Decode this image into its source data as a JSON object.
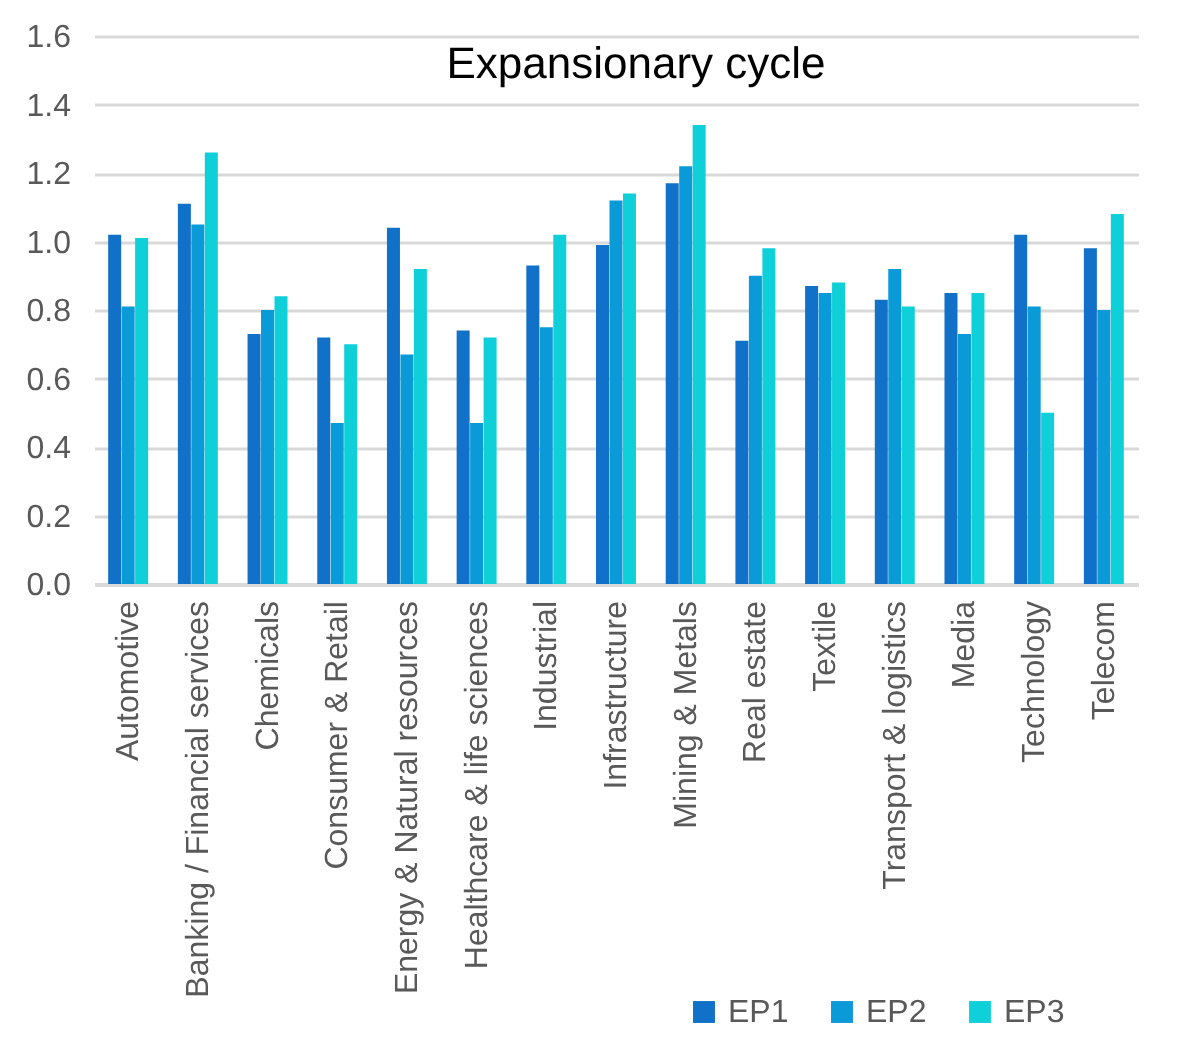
{
  "chart_data": {
    "type": "bar",
    "title": "Expansionary cycle",
    "categories": [
      "Automotive",
      "Banking / Financial services",
      "Chemicals",
      "Consumer & Retail",
      "Energy & Natural resources",
      "Healthcare & life sciences",
      "Industrial",
      "Infrastructure",
      "Mining & Metals",
      "Real estate",
      "Textile",
      "Transport & logistics",
      "Media",
      "Technology",
      "Telecom"
    ],
    "series": [
      {
        "name": "EP1",
        "color": "#1170c8",
        "values": [
          1.02,
          1.11,
          0.73,
          0.72,
          1.04,
          0.74,
          0.93,
          0.99,
          1.17,
          0.71,
          0.87,
          0.83,
          0.85,
          1.02,
          0.98
        ]
      },
      {
        "name": "EP2",
        "color": "#0a9ad8",
        "values": [
          0.81,
          1.05,
          0.8,
          0.47,
          0.67,
          0.47,
          0.75,
          1.12,
          1.22,
          0.9,
          0.85,
          0.92,
          0.73,
          0.81,
          0.8
        ]
      },
      {
        "name": "EP3",
        "color": "#0fd0d8",
        "values": [
          1.01,
          1.26,
          0.84,
          0.7,
          0.92,
          0.72,
          1.02,
          1.14,
          1.34,
          0.98,
          0.88,
          0.81,
          0.85,
          0.5,
          1.08
        ]
      }
    ],
    "ylim": [
      0,
      1.6
    ],
    "yticks": [
      {
        "value": 0,
        "label": "0.0"
      },
      0.2,
      0.4,
      0.6,
      0.8,
      {
        "value": 1,
        "label": "1.0"
      },
      1.2,
      1.4,
      1.6
    ],
    "grid": "y",
    "legend": "bottom right"
  }
}
